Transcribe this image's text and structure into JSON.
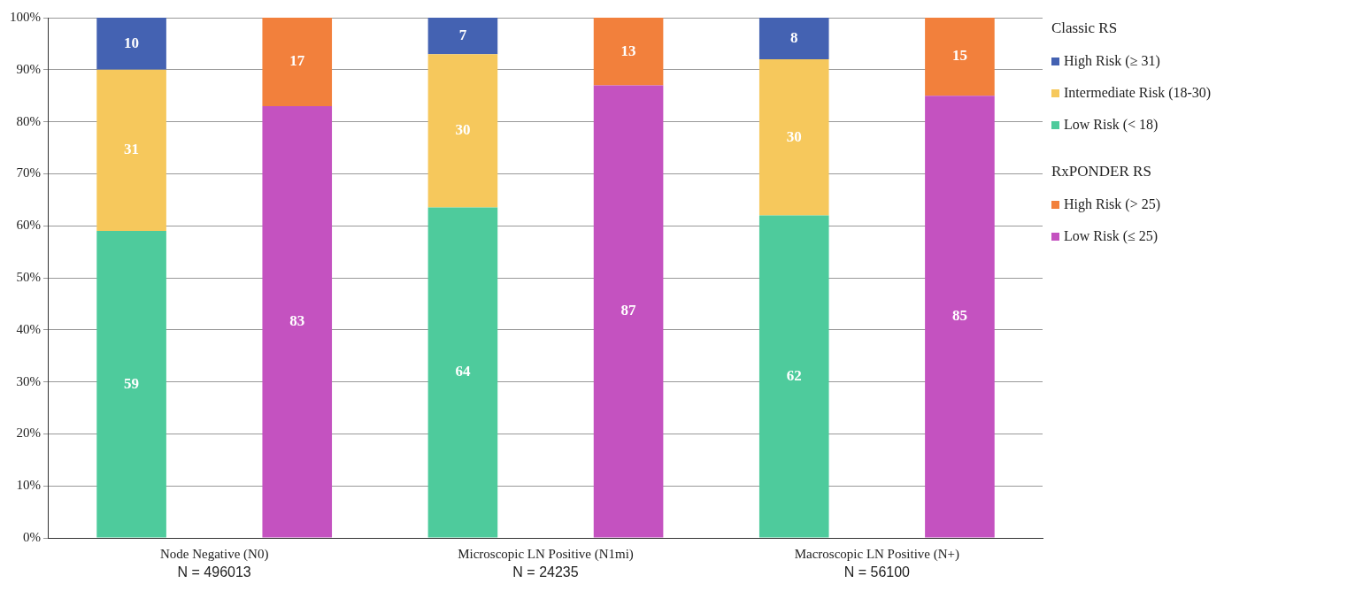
{
  "chart_data": {
    "type": "bar",
    "stacked": true,
    "categories": [
      "Node Negative (N0)\nN = 496013",
      null,
      "Microscopic LN Positive (N1mi)\nN = 24235",
      null,
      "Macroscopic LN Positive (N+)\nN = 56100",
      null
    ],
    "series": [
      {
        "name": "Low Risk (< 18)",
        "color": "#4ecb9c",
        "values": [
          59,
          null,
          63.5,
          null,
          62,
          null
        ],
        "value_labels": [
          "59",
          null,
          "64",
          null,
          "62",
          null
        ]
      },
      {
        "name": "Intermediate Risk (18-30)",
        "color": "#f6c85c",
        "values": [
          31,
          null,
          29.5,
          null,
          30,
          null
        ],
        "value_labels": [
          "31",
          null,
          "30",
          null,
          "30",
          null
        ]
      },
      {
        "name": "High Risk (≥ 31)",
        "color": "#4462b2",
        "values": [
          10,
          null,
          7,
          null,
          8,
          null
        ],
        "value_labels": [
          "10",
          null,
          "7",
          null,
          "8",
          null
        ]
      },
      {
        "name": "Low Risk (≤ 25)",
        "color": "#c452c0",
        "values": [
          null,
          83,
          null,
          87,
          null,
          85
        ],
        "value_labels": [
          null,
          "83",
          null,
          "87",
          null,
          "85"
        ]
      },
      {
        "name": "High Risk (> 25)",
        "color": "#f2803c",
        "values": [
          null,
          17,
          null,
          13,
          null,
          15
        ],
        "value_labels": [
          null,
          "17",
          null,
          "13",
          null,
          "15"
        ]
      }
    ],
    "legend_title": [
      "Classic RS",
      "RxPONDER RS"
    ],
    "ylim": [
      0,
      100
    ],
    "yticks": [
      {
        "value": 0,
        "label": "0%"
      },
      {
        "value": 10,
        "label": "10%"
      },
      {
        "value": 20,
        "label": "20%"
      },
      {
        "value": 30,
        "label": "30%"
      },
      {
        "value": 40,
        "label": "40%"
      },
      {
        "value": 50,
        "label": "50%"
      },
      {
        "value": 60,
        "label": "60%"
      },
      {
        "value": 70,
        "label": "70%"
      },
      {
        "value": 80,
        "label": "80%"
      },
      {
        "value": 90,
        "label": "90%"
      },
      {
        "value": 100,
        "label": "100%"
      }
    ],
    "grid": "y",
    "legend": "right"
  }
}
